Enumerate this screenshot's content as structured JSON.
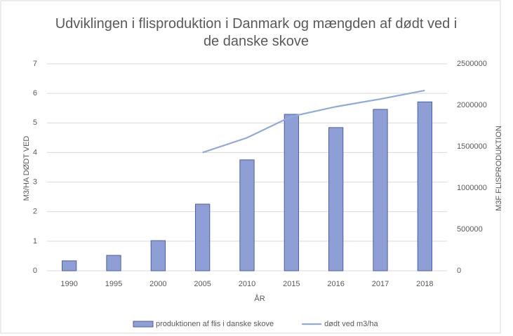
{
  "chart_data": {
    "type": "bar",
    "title": "Udviklingen i flisproduktion i Danmark og mængden af dødt ved i de danske skove",
    "categories": [
      "1990",
      "1995",
      "2000",
      "2005",
      "2010",
      "2015",
      "2016",
      "2017",
      "2018"
    ],
    "series": [
      {
        "name": "produktionen af flis i danske skove",
        "type": "bar",
        "axis": "y2",
        "color": "#8e9fd6",
        "values": [
          120000,
          186000,
          364000,
          805000,
          1340000,
          1890000,
          1730000,
          1950000,
          2040000
        ]
      },
      {
        "name": "dødt ved m3/ha",
        "type": "line",
        "color": "#8faadc",
        "values": [
          null,
          null,
          null,
          4.0,
          4.5,
          5.22,
          5.55,
          5.81,
          6.1
        ]
      }
    ],
    "x_label": "ÅR",
    "y_label": "M3/HA DØDT VED",
    "y2_label": "M3F FLISPRODUKTION",
    "ylim": [
      0,
      7
    ],
    "yticks": [
      0,
      1,
      2,
      3,
      4,
      5,
      6,
      7
    ],
    "y2lim": [
      0,
      2500000
    ],
    "y2ticks": [
      0,
      500000,
      1000000,
      1500000,
      2000000,
      2500000
    ],
    "grid": true,
    "legend": "bottom"
  }
}
